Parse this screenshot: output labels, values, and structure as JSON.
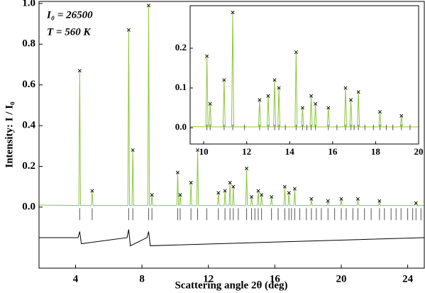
{
  "chart_data": [
    {
      "type": "line",
      "x_label": "Scattering angle 2θ (deg)",
      "y_label": "Intensity: I / I₀",
      "annotations": [
        "I₀ = 26500",
        "T = 560 K"
      ],
      "xlim": [
        1.8,
        25
      ],
      "ylim": [
        -0.3,
        1.01
      ],
      "xticks": [
        4,
        8,
        12,
        16,
        20,
        24
      ],
      "yticks": [
        {
          "value": 0,
          "label": "0.0"
        },
        {
          "value": 0.2,
          "label": "0.2"
        },
        {
          "value": 0.4,
          "label": "0.4"
        },
        {
          "value": 0.6,
          "label": "0.6"
        },
        {
          "value": 0.8,
          "label": "0.8"
        },
        {
          "value": 1.0,
          "label": "1.0"
        }
      ],
      "series": [
        {
          "style": "line",
          "color": "#8dc63f",
          "x": [
            1.8,
            4.2,
            4.25,
            4.3,
            4.95,
            5.0,
            5.05,
            7.15,
            7.2,
            7.25,
            7.4,
            7.45,
            7.5,
            8.35,
            8.4,
            8.45,
            8.55,
            8.6,
            8.65,
            10.1,
            10.15,
            10.2,
            10.25,
            10.3,
            10.35,
            10.9,
            10.95,
            11.0,
            11.3,
            11.35,
            11.4,
            12.55,
            12.6,
            12.65,
            12.95,
            13.0,
            13.05,
            13.25,
            13.3,
            13.35,
            13.45,
            13.5,
            13.55,
            14.25,
            14.3,
            14.35,
            14.55,
            14.6,
            14.65,
            14.95,
            15.0,
            15.05,
            15.15,
            15.2,
            15.25,
            15.75,
            15.8,
            15.85,
            16.55,
            16.6,
            16.65,
            16.8,
            16.85,
            16.9,
            17.15,
            17.2,
            17.25,
            18.15,
            18.2,
            18.25,
            19.15,
            19.2,
            19.25,
            19.95,
            20.0,
            20.05,
            20.95,
            21.0,
            21.05,
            22.25,
            22.3,
            22.35,
            24.45,
            24.5,
            24.55,
            25
          ],
          "values": [
            0.01,
            0.008,
            0.67,
            0.008,
            0.008,
            0.08,
            0.008,
            0.008,
            0.87,
            0.008,
            0.008,
            0.28,
            0.008,
            0.008,
            0.99,
            0.008,
            0.008,
            0.06,
            0.008,
            0.008,
            0.17,
            0.008,
            0.008,
            0.06,
            0.008,
            0.008,
            0.12,
            0.008,
            0.008,
            0.28,
            0.008,
            0.008,
            0.07,
            0.008,
            0.008,
            0.08,
            0.008,
            0.008,
            0.12,
            0.008,
            0.008,
            0.1,
            0.008,
            0.008,
            0.19,
            0.008,
            0.008,
            0.05,
            0.008,
            0.008,
            0.08,
            0.008,
            0.008,
            0.06,
            0.008,
            0.008,
            0.05,
            0.008,
            0.008,
            0.1,
            0.008,
            0.008,
            0.07,
            0.008,
            0.008,
            0.09,
            0.008,
            0.008,
            0.04,
            0.008,
            0.008,
            0.03,
            0.008,
            0.008,
            0.04,
            0.008,
            0.008,
            0.04,
            0.008,
            0.008,
            0.03,
            0.008,
            0.008,
            0.02,
            0.008,
            0.008
          ]
        },
        {
          "style": "points",
          "color": "#000000",
          "x": [
            4.25,
            5.0,
            7.2,
            7.45,
            8.4,
            8.6,
            10.15,
            10.3,
            10.95,
            11.35,
            12.6,
            13.0,
            13.3,
            13.5,
            14.3,
            14.6,
            15.0,
            15.2,
            15.8,
            16.6,
            16.85,
            17.2,
            18.2,
            19.2,
            20.0,
            21.0,
            22.3,
            24.5
          ],
          "values": [
            0.67,
            0.08,
            0.87,
            0.28,
            0.99,
            0.06,
            0.17,
            0.06,
            0.12,
            0.28,
            0.07,
            0.08,
            0.12,
            0.1,
            0.19,
            0.05,
            0.08,
            0.06,
            0.05,
            0.1,
            0.07,
            0.09,
            0.04,
            0.03,
            0.04,
            0.04,
            0.03,
            0.02
          ]
        },
        {
          "style": "line",
          "color": "#000000",
          "x": [
            1.8,
            4.15,
            4.25,
            4.35,
            7.1,
            7.2,
            7.3,
            8.3,
            8.4,
            8.5,
            25
          ],
          "values": [
            -0.15,
            -0.15,
            -0.12,
            -0.18,
            -0.15,
            -0.11,
            -0.19,
            -0.15,
            -0.12,
            -0.19,
            -0.15
          ]
        }
      ],
      "bragg_color": "#555555",
      "bragg_ticks": [
        4.25,
        5.0,
        7.2,
        7.45,
        8.4,
        8.6,
        10.15,
        10.3,
        10.95,
        11.35,
        11.9,
        12.6,
        13.0,
        13.3,
        13.5,
        13.8,
        14.3,
        14.6,
        14.8,
        15.0,
        15.2,
        15.8,
        16.2,
        16.6,
        16.85,
        17.0,
        17.2,
        17.5,
        17.9,
        18.2,
        18.5,
        18.8,
        19.2,
        19.6,
        20.0,
        20.3,
        20.7,
        21.0,
        21.4,
        21.8,
        22.3,
        22.6,
        23.0,
        23.3,
        23.6,
        24.0,
        24.3,
        24.5,
        24.8
      ]
    },
    {
      "type": "line",
      "xlim": [
        9.37,
        20
      ],
      "ylim": [
        -0.041,
        0.307
      ],
      "xticks": [
        10,
        12,
        14,
        16,
        18,
        20
      ],
      "yticks": [
        {
          "value": 0,
          "label": "0.0"
        },
        {
          "value": 0.1,
          "label": "0.1"
        },
        {
          "value": 0.2,
          "label": "0.2"
        }
      ],
      "series": [
        {
          "style": "line",
          "color": "#8dc63f",
          "x": [
            9.4,
            10.1,
            10.15,
            10.2,
            10.25,
            10.3,
            10.35,
            10.9,
            10.95,
            11.0,
            11.3,
            11.35,
            11.4,
            12.55,
            12.6,
            12.65,
            12.95,
            13.0,
            13.05,
            13.25,
            13.3,
            13.35,
            13.45,
            13.5,
            13.55,
            14.25,
            14.3,
            14.35,
            14.55,
            14.6,
            14.65,
            14.95,
            15.0,
            15.05,
            15.15,
            15.2,
            15.25,
            15.75,
            15.8,
            15.85,
            16.55,
            16.6,
            16.65,
            16.8,
            16.85,
            16.9,
            17.15,
            17.2,
            17.25,
            18.15,
            18.2,
            18.25,
            19.15,
            19.2,
            19.25,
            20
          ],
          "values": [
            0.003,
            0.002,
            0.18,
            0.002,
            0.002,
            0.06,
            0.002,
            0.002,
            0.12,
            0.002,
            0.002,
            0.29,
            0.002,
            0.002,
            0.07,
            0.002,
            0.002,
            0.08,
            0.002,
            0.002,
            0.12,
            0.002,
            0.002,
            0.1,
            0.002,
            0.002,
            0.19,
            0.002,
            0.002,
            0.05,
            0.002,
            0.002,
            0.08,
            0.002,
            0.002,
            0.06,
            0.002,
            0.002,
            0.05,
            0.002,
            0.002,
            0.1,
            0.002,
            0.002,
            0.07,
            0.002,
            0.002,
            0.09,
            0.002,
            0.002,
            0.04,
            0.002,
            0.002,
            0.03,
            0.002,
            0.002
          ]
        },
        {
          "style": "points",
          "color": "#000000",
          "x": [
            10.15,
            10.3,
            10.95,
            11.35,
            12.6,
            13.0,
            13.3,
            13.5,
            14.3,
            14.6,
            15.0,
            15.2,
            15.8,
            16.6,
            16.85,
            17.2,
            18.2,
            19.2
          ],
          "values": [
            0.18,
            0.06,
            0.12,
            0.29,
            0.07,
            0.08,
            0.12,
            0.1,
            0.19,
            0.05,
            0.08,
            0.06,
            0.05,
            0.1,
            0.07,
            0.09,
            0.04,
            0.03
          ]
        }
      ],
      "bragg_color": "#555555",
      "bragg_ticks": [
        10.15,
        10.3,
        10.95,
        11.35,
        11.9,
        12.6,
        13.0,
        13.3,
        13.5,
        13.8,
        14.3,
        14.6,
        14.8,
        15.0,
        15.2,
        15.8,
        16.2,
        16.6,
        16.85,
        17.0,
        17.2,
        17.5,
        17.9,
        18.2,
        18.5,
        18.8,
        19.2,
        19.6
      ]
    }
  ]
}
